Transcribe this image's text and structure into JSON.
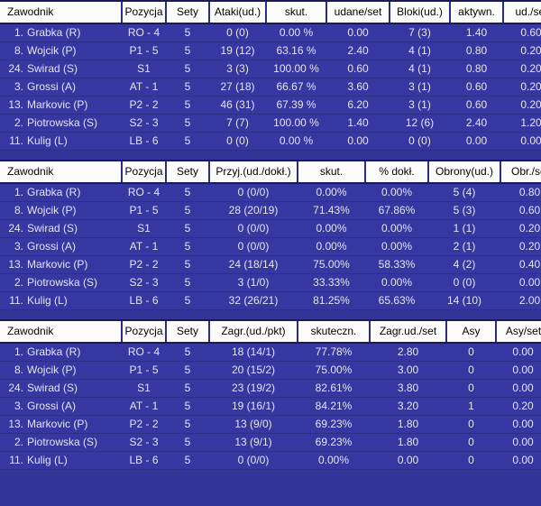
{
  "app": {
    "description_label": "volleyball player statistics panel",
    "colors": {
      "page_background": "#343499",
      "row_background": "#3737A1",
      "header_background": "#FCFCFC",
      "header_text": "#000000",
      "row_text": "#E4E4F4",
      "separator": "#191960"
    },
    "sets_played": "5"
  },
  "tables": [
    {
      "name": "attack-block-stats",
      "headers": [
        "Zawodnik",
        "Pozycja",
        "Sety",
        "Ataki(ud.)",
        "skut.",
        "udane/set",
        "Bloki(ud.)",
        "aktywn.",
        "ud./set"
      ],
      "rows": [
        {
          "player": {
            "num": "1.",
            "name": "Grabka (R)"
          },
          "values": [
            "RO - 4",
            "5",
            "0 (0)",
            "0.00 %",
            "0.00",
            "7 (3)",
            "1.40",
            "0.60"
          ]
        },
        {
          "player": {
            "num": "8.",
            "name": "Wojcik (P)"
          },
          "values": [
            "P1 - 5",
            "5",
            "19 (12)",
            "63.16 %",
            "2.40",
            "4 (1)",
            "0.80",
            "0.20"
          ]
        },
        {
          "player": {
            "num": "24.",
            "name": "Swirad (S)"
          },
          "values": [
            "S1",
            "5",
            "3 (3)",
            "100.00 %",
            "0.60",
            "4 (1)",
            "0.80",
            "0.20"
          ]
        },
        {
          "player": {
            "num": "3.",
            "name": "Grossi (A)"
          },
          "values": [
            "AT - 1",
            "5",
            "27 (18)",
            "66.67 %",
            "3.60",
            "3 (1)",
            "0.60",
            "0.20"
          ]
        },
        {
          "player": {
            "num": "13.",
            "name": "Markovic (P)"
          },
          "values": [
            "P2 - 2",
            "5",
            "46 (31)",
            "67.39 %",
            "6.20",
            "3 (1)",
            "0.60",
            "0.20"
          ]
        },
        {
          "player": {
            "num": "2.",
            "name": "Piotrowska (S)"
          },
          "values": [
            "S2 - 3",
            "5",
            "7 (7)",
            "100.00 %",
            "1.40",
            "12 (6)",
            "2.40",
            "1.20"
          ]
        },
        {
          "player": {
            "num": "11.",
            "name": "Kulig (L)"
          },
          "values": [
            "LB - 6",
            "5",
            "0 (0)",
            "0.00 %",
            "0.00",
            "0 (0)",
            "0.00",
            "0.00"
          ]
        }
      ]
    },
    {
      "name": "reception-defense-stats",
      "headers": [
        "Zawodnik",
        "Pozycja",
        "Sety",
        "Przyj.(ud./dokł.)",
        "skut.",
        "% dokł.",
        "Obrony(ud.)",
        "Obr./set"
      ],
      "rows": [
        {
          "player": {
            "num": "1.",
            "name": "Grabka (R)"
          },
          "values": [
            "RO - 4",
            "5",
            "0 (0/0)",
            "0.00%",
            "0.00%",
            "5 (4)",
            "0.80"
          ]
        },
        {
          "player": {
            "num": "8.",
            "name": "Wojcik (P)"
          },
          "values": [
            "P1 - 5",
            "5",
            "28 (20/19)",
            "71.43%",
            "67.86%",
            "5 (3)",
            "0.60"
          ]
        },
        {
          "player": {
            "num": "24.",
            "name": "Swirad (S)"
          },
          "values": [
            "S1",
            "5",
            "0 (0/0)",
            "0.00%",
            "0.00%",
            "1 (1)",
            "0.20"
          ]
        },
        {
          "player": {
            "num": "3.",
            "name": "Grossi (A)"
          },
          "values": [
            "AT - 1",
            "5",
            "0 (0/0)",
            "0.00%",
            "0.00%",
            "2 (1)",
            "0.20"
          ]
        },
        {
          "player": {
            "num": "13.",
            "name": "Markovic (P)"
          },
          "values": [
            "P2 - 2",
            "5",
            "24 (18/14)",
            "75.00%",
            "58.33%",
            "4 (2)",
            "0.40"
          ]
        },
        {
          "player": {
            "num": "2.",
            "name": "Piotrowska (S)"
          },
          "values": [
            "S2 - 3",
            "5",
            "3 (1/0)",
            "33.33%",
            "0.00%",
            "0 (0)",
            "0.00"
          ]
        },
        {
          "player": {
            "num": "11.",
            "name": "Kulig (L)"
          },
          "values": [
            "LB - 6",
            "5",
            "32 (26/21)",
            "81.25%",
            "65.63%",
            "14 (10)",
            "2.00"
          ]
        }
      ]
    },
    {
      "name": "serve-stats",
      "headers": [
        "Zawodnik",
        "Pozycja",
        "Sety",
        "Zagr.(ud./pkt)",
        "skuteczn.",
        "Zagr.ud./set",
        "Asy",
        "Asy/set"
      ],
      "rows": [
        {
          "player": {
            "num": "1.",
            "name": "Grabka (R)"
          },
          "values": [
            "RO - 4",
            "5",
            "18 (14/1)",
            "77.78%",
            "2.80",
            "0",
            "0.00"
          ]
        },
        {
          "player": {
            "num": "8.",
            "name": "Wojcik (P)"
          },
          "values": [
            "P1 - 5",
            "5",
            "20 (15/2)",
            "75.00%",
            "3.00",
            "0",
            "0.00"
          ]
        },
        {
          "player": {
            "num": "24.",
            "name": "Swirad (S)"
          },
          "values": [
            "S1",
            "5",
            "23 (19/2)",
            "82.61%",
            "3.80",
            "0",
            "0.00"
          ]
        },
        {
          "player": {
            "num": "3.",
            "name": "Grossi (A)"
          },
          "values": [
            "AT - 1",
            "5",
            "19 (16/1)",
            "84.21%",
            "3.20",
            "1",
            "0.20"
          ]
        },
        {
          "player": {
            "num": "13.",
            "name": "Markovic (P)"
          },
          "values": [
            "P2 - 2",
            "5",
            "13 (9/0)",
            "69.23%",
            "1.80",
            "0",
            "0.00"
          ]
        },
        {
          "player": {
            "num": "2.",
            "name": "Piotrowska (S)"
          },
          "values": [
            "S2 - 3",
            "5",
            "13 (9/1)",
            "69.23%",
            "1.80",
            "0",
            "0.00"
          ]
        },
        {
          "player": {
            "num": "11.",
            "name": "Kulig (L)"
          },
          "values": [
            "LB - 6",
            "5",
            "0 (0/0)",
            "0.00%",
            "0.00",
            "0",
            "0.00"
          ]
        }
      ]
    }
  ]
}
